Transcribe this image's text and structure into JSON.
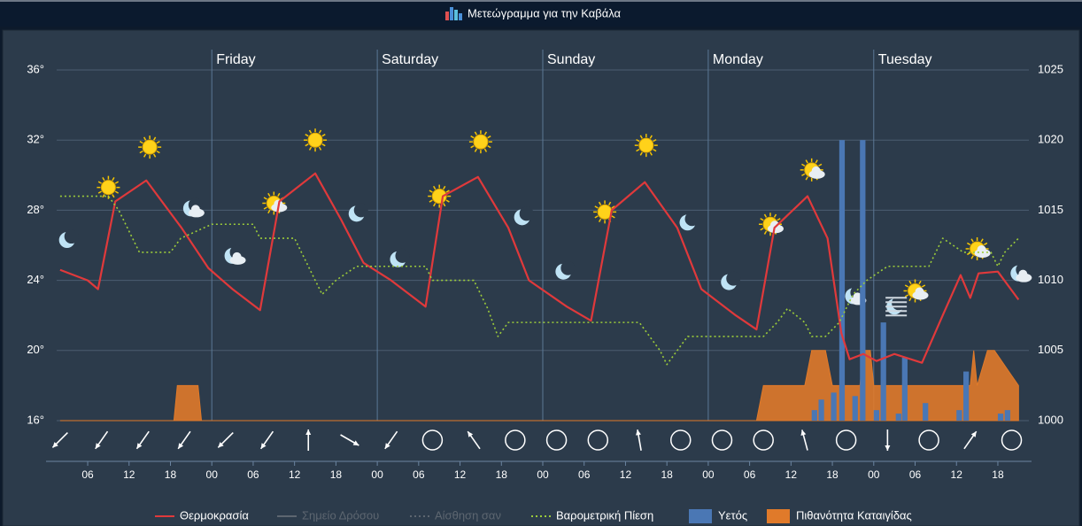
{
  "title": "Μετεώγραμμα για την Καβάλα",
  "chart_data": {
    "type": "line",
    "xlim": [
      1.5,
      142.5
    ],
    "xticks": [
      {
        "value": 6,
        "label": "06"
      },
      {
        "value": 12,
        "label": "12"
      },
      {
        "value": 18,
        "label": "18"
      },
      {
        "value": 24,
        "label": "00"
      },
      {
        "value": 30,
        "label": "06"
      },
      {
        "value": 36,
        "label": "12"
      },
      {
        "value": 42,
        "label": "18"
      },
      {
        "value": 48,
        "label": "00"
      },
      {
        "value": 54,
        "label": "06"
      },
      {
        "value": 60,
        "label": "12"
      },
      {
        "value": 66,
        "label": "18"
      },
      {
        "value": 72,
        "label": "00"
      },
      {
        "value": 78,
        "label": "06"
      },
      {
        "value": 84,
        "label": "12"
      },
      {
        "value": 90,
        "label": "18"
      },
      {
        "value": 96,
        "label": "00"
      },
      {
        "value": 102,
        "label": "06"
      },
      {
        "value": 108,
        "label": "12"
      },
      {
        "value": 114,
        "label": "18"
      },
      {
        "value": 120,
        "label": "00"
      },
      {
        "value": 126,
        "label": "06"
      },
      {
        "value": 132,
        "label": "12"
      },
      {
        "value": 138,
        "label": "18"
      }
    ],
    "day_ticks": [
      {
        "value": 24,
        "label": "Friday"
      },
      {
        "value": 48,
        "label": "Saturday"
      },
      {
        "value": 72,
        "label": "Sunday"
      },
      {
        "value": 96,
        "label": "Monday"
      },
      {
        "value": 120,
        "label": "Tuesday"
      }
    ],
    "ylim": [
      16,
      36
    ],
    "yticks": [
      {
        "value": 16,
        "label": "16°"
      },
      {
        "value": 20,
        "label": "20°"
      },
      {
        "value": 24,
        "label": "24°"
      },
      {
        "value": 28,
        "label": "28°"
      },
      {
        "value": 32,
        "label": "32°"
      },
      {
        "value": 36,
        "label": "36°"
      }
    ],
    "y2lim": [
      1000,
      1025
    ],
    "y2ticks": [
      1000,
      1005,
      1010,
      1015,
      1020,
      1025
    ],
    "y3lim": [
      0,
      10
    ],
    "y4lim": [
      0,
      100
    ],
    "grid": true,
    "legend": "bottom",
    "series": [
      {
        "name": "Θερμοκρασία",
        "type": "line",
        "axis": "y",
        "color": "#e0393b",
        "x": [
          2,
          6,
          7.5,
          10,
          14.5,
          19.6,
          23.5,
          27,
          31,
          33.8,
          39,
          42.7,
          46,
          50,
          55,
          57.5,
          62.6,
          67,
          70,
          75.5,
          79,
          82,
          86.8,
          91.5,
          95,
          100,
          103,
          105.6,
          110.4,
          113.3,
          115.3,
          116.5,
          118.5,
          120.4,
          123,
          127,
          130,
          132.6,
          134,
          135.2,
          138,
          141
        ],
        "values": [
          24.6,
          24,
          23.5,
          28.5,
          29.7,
          27,
          24.7,
          23.5,
          22.3,
          28.5,
          30.1,
          27.5,
          25,
          24,
          22.5,
          28.8,
          29.9,
          27,
          24,
          22.5,
          21.7,
          28,
          29.6,
          27,
          23.5,
          22,
          21.2,
          27,
          28.8,
          26.4,
          21,
          19.5,
          19.8,
          19.4,
          19.8,
          19.3,
          22,
          24.3,
          23,
          24.4,
          24.5,
          22.9
        ]
      },
      {
        "name": "Σημείο Δρόσου",
        "type": "line",
        "hidden": true,
        "color": "#666666"
      },
      {
        "name": "Αίσθηση σαν",
        "type": "line",
        "hidden": true,
        "dashed": true,
        "color": "#666666"
      },
      {
        "name": "Βαρομετρική Πίεση",
        "type": "line",
        "axis": "y2",
        "dashed": true,
        "color": "#9ccc3a",
        "x": [
          2,
          9,
          10.5,
          13.5,
          18,
          19.5,
          24,
          30,
          31,
          36,
          37,
          40,
          42,
          45,
          55,
          56,
          62,
          64,
          65.5,
          67,
          86,
          89,
          90,
          93,
          104,
          106,
          107.5,
          110,
          111,
          113,
          115,
          117,
          119,
          122,
          128,
          130,
          133,
          137,
          138,
          139,
          141
        ],
        "values": [
          1016,
          1016,
          1015,
          1012,
          1012,
          1013,
          1014,
          1014,
          1013,
          1013,
          1012,
          1009,
          1010,
          1011,
          1011,
          1010,
          1010,
          1008,
          1006,
          1007,
          1007,
          1005,
          1004,
          1006,
          1006,
          1007,
          1008,
          1007,
          1006,
          1006,
          1007,
          1009,
          1010,
          1011,
          1011,
          1013,
          1012,
          1012,
          1011,
          1012,
          1013
        ]
      },
      {
        "name": "Υετός",
        "type": "bar",
        "axis": "y3",
        "color": "#4a77b4",
        "x": [
          111.4,
          112.4,
          114.2,
          115.4,
          117.3,
          118.4,
          120.4,
          121.4,
          123.6,
          124.5,
          127.5,
          132.4,
          133.4,
          138.4,
          139.4
        ],
        "values": [
          0.3,
          0.6,
          0.8,
          8,
          0.7,
          8,
          0.3,
          2.8,
          0.2,
          1.8,
          0.5,
          0.3,
          1.4,
          0.2,
          0.3
        ]
      },
      {
        "name": "Πιθανότητα Καταιγίδας",
        "type": "area",
        "axis": "y4",
        "color": "#e07a2a",
        "x": [
          2,
          18.5,
          19,
          22,
          22.5,
          103,
          104,
          110,
          111,
          113,
          114,
          118,
          118.5,
          119.5,
          120,
          134,
          134.5,
          135,
          136.5,
          137.5,
          141
        ],
        "values": [
          0,
          0,
          10,
          10,
          0,
          0,
          10,
          10,
          20,
          20,
          10,
          10,
          20,
          20,
          10,
          10,
          20,
          10,
          20,
          20,
          10
        ]
      }
    ],
    "wind": {
      "x": [
        2,
        8,
        14,
        20,
        26,
        32,
        38,
        44,
        50,
        56,
        62,
        68,
        74,
        80,
        86,
        92,
        98,
        104,
        110,
        116,
        122,
        128,
        134,
        140
      ],
      "direction": [
        45,
        35,
        35,
        35,
        45,
        35,
        180,
        300,
        35,
        null,
        145,
        null,
        null,
        null,
        170,
        null,
        null,
        null,
        165,
        null,
        0,
        null,
        215,
        null
      ]
    }
  }
}
